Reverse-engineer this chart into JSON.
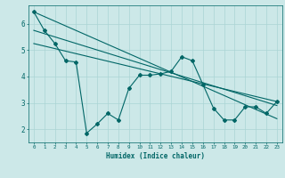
{
  "xlabel": "Humidex (Indice chaleur)",
  "bg_color": "#cce8e8",
  "line_color": "#006666",
  "grid_color": "#aad4d4",
  "xlim": [
    -0.5,
    23.5
  ],
  "ylim": [
    1.5,
    6.7
  ],
  "yticks": [
    2,
    3,
    4,
    5,
    6
  ],
  "xticks": [
    0,
    1,
    2,
    3,
    4,
    5,
    6,
    7,
    8,
    9,
    10,
    11,
    12,
    13,
    14,
    15,
    16,
    17,
    18,
    19,
    20,
    21,
    22,
    23
  ],
  "series1_x": [
    0,
    1,
    2,
    3,
    4,
    5,
    6,
    7,
    8,
    9,
    10,
    11,
    12,
    13,
    14,
    15,
    16,
    17,
    18,
    19,
    20,
    21,
    22,
    23
  ],
  "series1_y": [
    6.45,
    5.75,
    5.25,
    4.6,
    4.55,
    1.85,
    2.2,
    2.6,
    2.35,
    3.55,
    4.05,
    4.05,
    4.1,
    4.2,
    4.75,
    4.6,
    3.7,
    2.8,
    2.35,
    2.35,
    2.85,
    2.85,
    2.6,
    3.05
  ],
  "series2_x": [
    0,
    23
  ],
  "series2_y": [
    6.45,
    2.4
  ],
  "series3_x": [
    0,
    23
  ],
  "series3_y": [
    5.75,
    2.9
  ],
  "series4_x": [
    0,
    23
  ],
  "series4_y": [
    5.25,
    3.05
  ]
}
